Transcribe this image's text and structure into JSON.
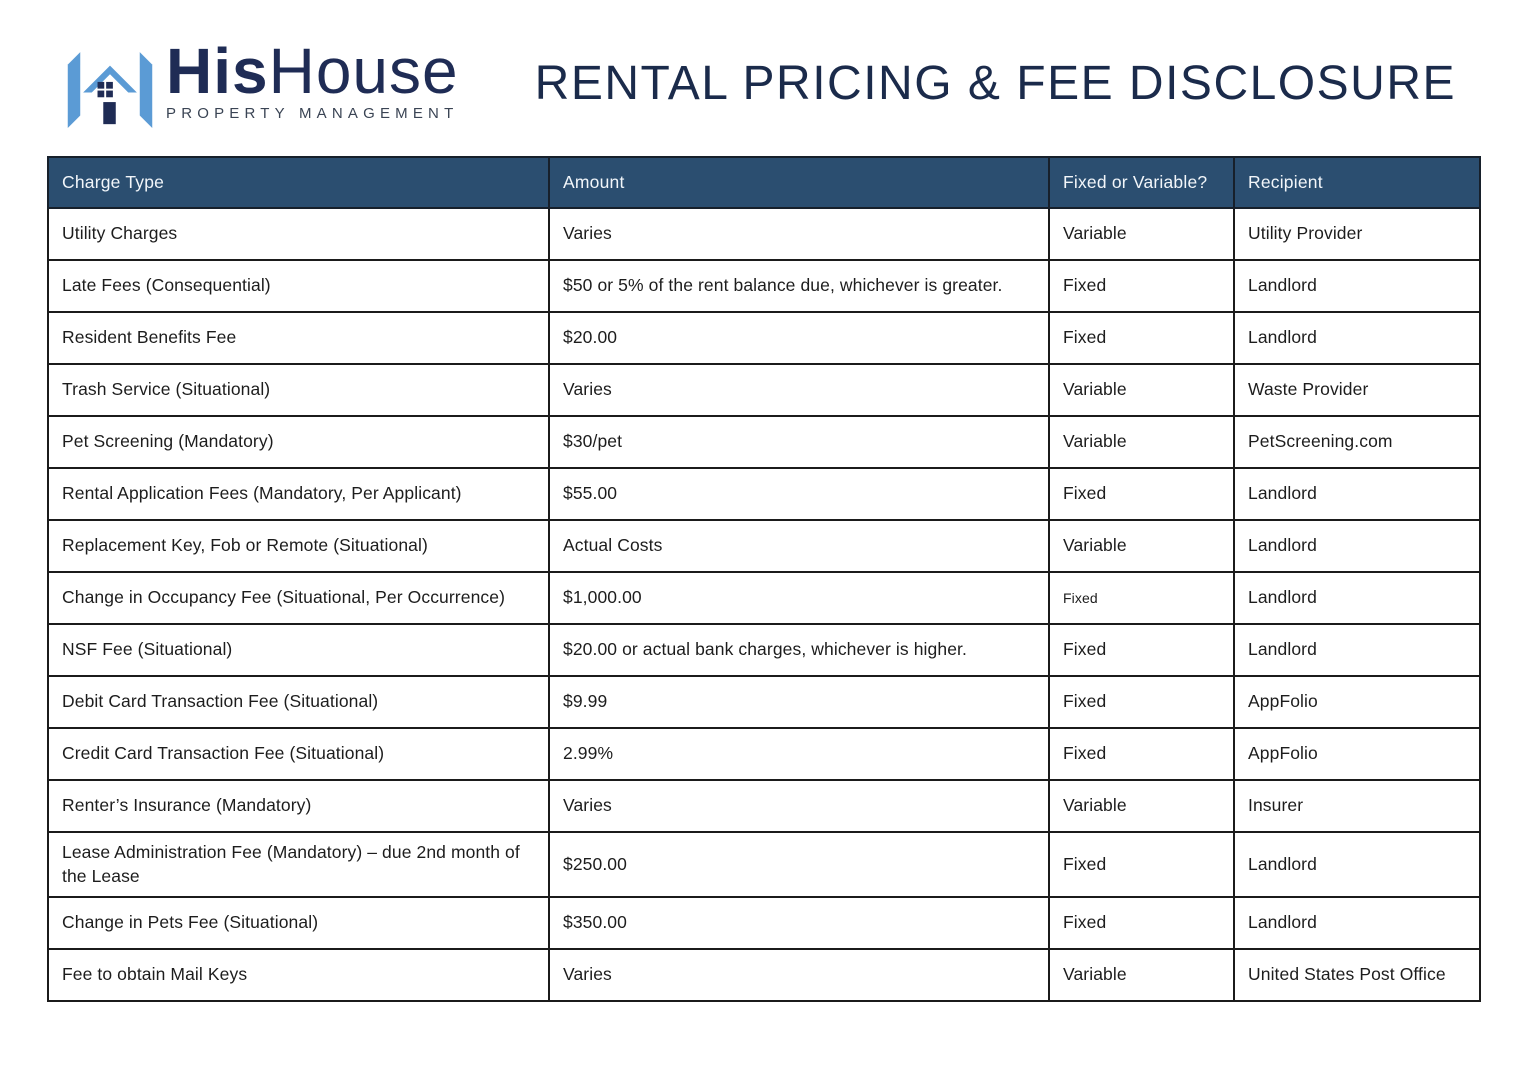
{
  "logo": {
    "brand_bold": "His",
    "brand_light": "House",
    "subtitle": "PROPERTY MANAGEMENT",
    "icon": "house-h-logo"
  },
  "title": "RENTAL PRICING & FEE DISCLOSURE",
  "colors": {
    "header_bg": "#2b4e70",
    "navy": "#1f2c55",
    "light_blue": "#5b9bd5",
    "border": "#1b1b1b",
    "header_text": "#f2f6fa",
    "body_text": "#1d1d1d"
  },
  "table": {
    "headers": [
      "Charge Type",
      "Amount",
      "Fixed or Variable?",
      "Recipient"
    ],
    "rows": [
      {
        "charge": "Utility Charges",
        "amount": "Varies",
        "type": "Variable",
        "recipient": "Utility Provider",
        "type_small": false
      },
      {
        "charge": "Late Fees (Consequential)",
        "amount": "$50 or 5% of the rent balance due, whichever is greater.",
        "type": "Fixed",
        "recipient": "Landlord",
        "type_small": false
      },
      {
        "charge": "Resident Benefits Fee",
        "amount": "$20.00",
        "type": "Fixed",
        "recipient": "Landlord",
        "type_small": false
      },
      {
        "charge": "Trash Service (Situational)",
        "amount": "Varies",
        "type": "Variable",
        "recipient": "Waste Provider",
        "type_small": false
      },
      {
        "charge": "Pet Screening (Mandatory)",
        "amount": "$30/pet",
        "type": "Variable",
        "recipient": "PetScreening.com",
        "type_small": false
      },
      {
        "charge": "Rental Application Fees (Mandatory, Per Applicant)",
        "amount": "$55.00",
        "type": "Fixed",
        "recipient": "Landlord",
        "type_small": false
      },
      {
        "charge": "Replacement Key, Fob or Remote (Situational)",
        "amount": "Actual Costs",
        "type": "Variable",
        "recipient": "Landlord",
        "type_small": false
      },
      {
        "charge": "Change in Occupancy Fee (Situational, Per Occurrence)",
        "amount": "$1,000.00",
        "type": "Fixed",
        "recipient": "Landlord",
        "type_small": true
      },
      {
        "charge": "NSF Fee (Situational)",
        "amount": "$20.00 or actual bank charges, whichever is higher.",
        "type": "Fixed",
        "recipient": "Landlord",
        "type_small": false
      },
      {
        "charge": "Debit Card Transaction Fee (Situational)",
        "amount": "$9.99",
        "type": "Fixed",
        "recipient": "AppFolio",
        "type_small": false
      },
      {
        "charge": "Credit Card Transaction Fee (Situational)",
        "amount": "2.99%",
        "type": "Fixed",
        "recipient": "AppFolio",
        "type_small": false
      },
      {
        "charge": "Renter’s Insurance (Mandatory)",
        "amount": "Varies",
        "type": "Variable",
        "recipient": "Insurer",
        "type_small": false
      },
      {
        "charge": "Lease Administration Fee (Mandatory) – due 2nd month of the Lease",
        "amount": "$250.00",
        "type": "Fixed",
        "recipient": "Landlord",
        "type_small": false
      },
      {
        "charge": "Change in Pets Fee (Situational)",
        "amount": "$350.00",
        "type": "Fixed",
        "recipient": "Landlord",
        "type_small": false
      },
      {
        "charge": "Fee to obtain Mail Keys",
        "amount": "Varies",
        "type": "Variable",
        "recipient": "United States Post Office",
        "type_small": false
      }
    ]
  }
}
